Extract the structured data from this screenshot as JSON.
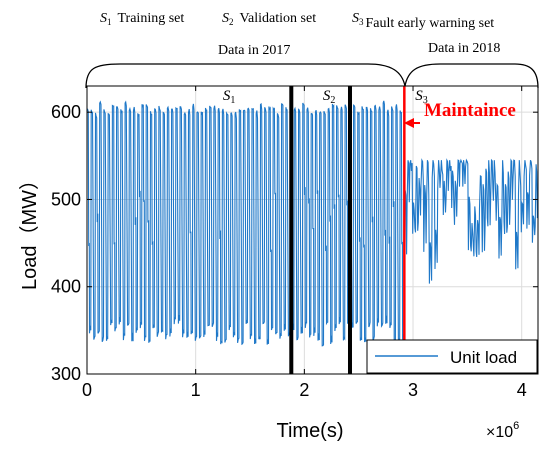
{
  "legend_top": [
    {
      "symbol": "S",
      "sub": "1",
      "label": "Training set"
    },
    {
      "symbol": "S",
      "sub": "2",
      "label": "Validation set"
    },
    {
      "symbol": "S",
      "sub": "3",
      "label": "Fault early warning set"
    }
  ],
  "chart_data": {
    "type": "line",
    "xlabel": "Time(s)",
    "ylabel": "Load（MW）",
    "xlim": [
      0,
      4.15
    ],
    "ylim": [
      300,
      630
    ],
    "x_multiplier_label": "×10",
    "x_multiplier_exponent": "6",
    "xticks": [
      0,
      1,
      2,
      3,
      4
    ],
    "yticks": [
      300,
      400,
      500,
      600
    ],
    "grid": true,
    "legend_position": "bottom-right",
    "series": [
      {
        "name": "Unit load",
        "color": "#1f78c8",
        "segments": [
          {
            "x_range": [
              0,
              2.92
            ],
            "high": 605,
            "low": 340,
            "approx_cycles": 75
          },
          {
            "x_range": [
              2.92,
              4.15
            ],
            "range": [
              400,
              545
            ]
          }
        ]
      }
    ],
    "vertical_lines": [
      {
        "x": 1.88,
        "color": "#000000"
      },
      {
        "x": 2.42,
        "color": "#000000"
      },
      {
        "x": 2.92,
        "color": "#ff0000"
      }
    ],
    "region_labels": [
      {
        "symbol": "S",
        "sub": "1",
        "x": 1.25
      },
      {
        "symbol": "S",
        "sub": "2",
        "x": 2.17
      },
      {
        "symbol": "S",
        "sub": "3",
        "x": 3.02
      }
    ],
    "braces": [
      {
        "x_range": [
          0,
          2.92
        ],
        "label": "Data in 2017"
      },
      {
        "x_range": [
          2.92,
          4.15
        ],
        "label": "Data in 2018"
      }
    ],
    "annotation": {
      "text": "Maintaince",
      "color": "#ff0000",
      "arrow_to_x": 2.92
    }
  }
}
